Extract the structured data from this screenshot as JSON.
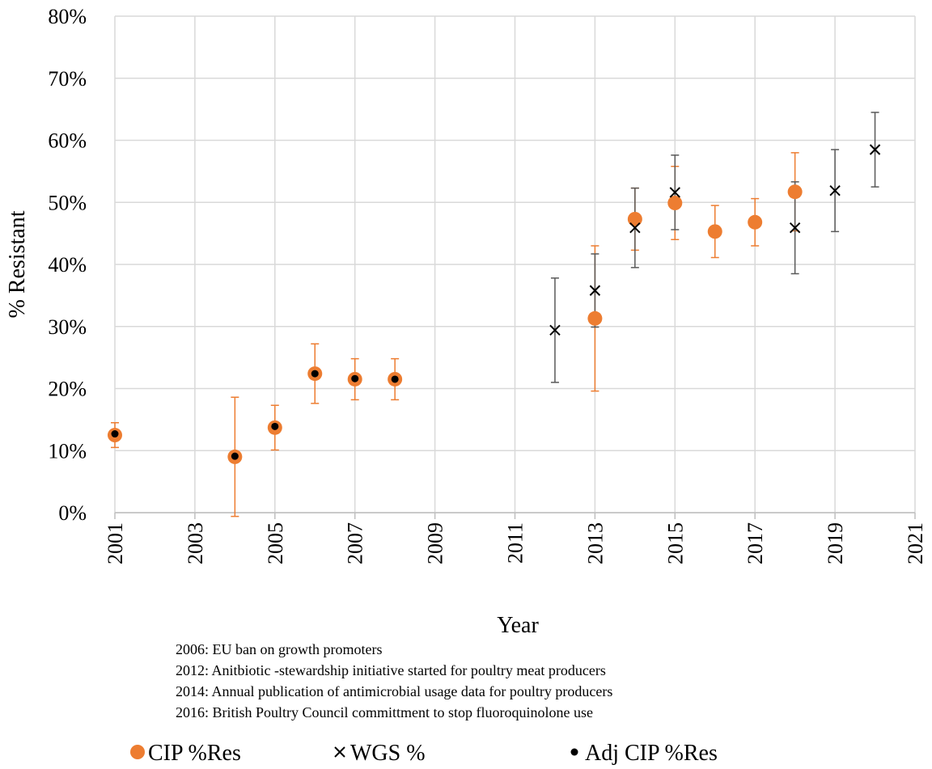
{
  "chart_data": {
    "type": "scatter",
    "y_label": "% Resistant",
    "x_label": "Year",
    "annotations": [
      "2006: EU ban on growth promoters",
      "2012: Anitbiotic -stewardship initiative started for poultry meat producers",
      "2014: Annual publication of antimicrobial usage data for poultry producers",
      "2016: British Poultry Council committment to stop fluoroquinolone use"
    ],
    "xlim": [
      2001,
      2021
    ],
    "xticks": [
      2001,
      2003,
      2005,
      2007,
      2009,
      2011,
      2013,
      2015,
      2017,
      2019,
      2021
    ],
    "ylim": [
      0,
      80
    ],
    "yticks": [
      {
        "value": 0,
        "label": "0%"
      },
      {
        "value": 10,
        "label": "10%"
      },
      {
        "value": 20,
        "label": "20%"
      },
      {
        "value": 30,
        "label": "30%"
      },
      {
        "value": 40,
        "label": "40%"
      },
      {
        "value": 50,
        "label": "50%"
      },
      {
        "value": 60,
        "label": "60%"
      },
      {
        "value": 70,
        "label": "70%"
      },
      {
        "value": 80,
        "label": "80%"
      }
    ],
    "grid": true,
    "legend": "bottom",
    "series": [
      {
        "name": "CIP %Res",
        "color": "#ed7d31",
        "marker": "circle",
        "x": [
          2001,
          2004,
          2005,
          2006,
          2007,
          2008,
          2013,
          2014,
          2015,
          2016,
          2017,
          2018
        ],
        "values": [
          12.5,
          9.0,
          13.7,
          22.4,
          21.5,
          21.5,
          31.3,
          47.3,
          49.9,
          45.3,
          46.8,
          51.7
        ],
        "errors": [
          2.0,
          9.6,
          3.6,
          4.8,
          3.3,
          3.3,
          11.7,
          5.0,
          5.9,
          4.2,
          3.8,
          6.3
        ]
      },
      {
        "name": "WGS %",
        "color": "#000000",
        "error_color": "#595959",
        "marker": "x",
        "x": [
          2012,
          2013,
          2014,
          2015,
          2018,
          2019,
          2020
        ],
        "values": [
          29.4,
          35.8,
          45.9,
          51.6,
          45.9,
          51.9,
          58.5
        ],
        "errors": [
          8.4,
          5.9,
          6.4,
          6.0,
          7.4,
          6.6,
          6.0
        ]
      },
      {
        "name": "Adj CIP %Res",
        "color": "#000000",
        "marker": "dot",
        "x": [
          2001,
          2004,
          2005,
          2006,
          2007,
          2008
        ],
        "values": [
          12.7,
          9.1,
          13.9,
          22.4,
          21.6,
          21.5
        ]
      }
    ]
  }
}
